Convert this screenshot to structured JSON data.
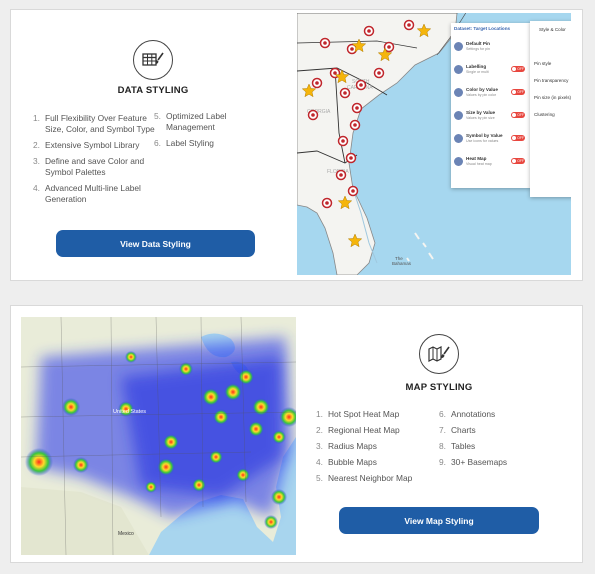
{
  "data_styling": {
    "title": "DATA STYLING",
    "icon": "table-paintbrush-icon",
    "features_left": [
      {
        "num": "1.",
        "text": "Full Flexibility Over Feature Size, Color, and Symbol Type"
      },
      {
        "num": "2.",
        "text": "Extensive Symbol Library"
      },
      {
        "num": "3.",
        "text": "Define and save Color and Symbol Palettes"
      },
      {
        "num": "4.",
        "text": "Advanced Multi-line Label Generation"
      }
    ],
    "features_right": [
      {
        "num": "5.",
        "text": "Optimized Label Management"
      },
      {
        "num": "6.",
        "text": "Label Styling"
      }
    ],
    "button": "View Data Styling",
    "map_panel": {
      "dataset": "Dataset: Target Locations",
      "tab": "Style & Color",
      "rows": [
        {
          "title": "Default Pin",
          "sub": "Settings for pin"
        },
        {
          "title": "Labelling",
          "sub": "Single or multi",
          "toggle": "OFF"
        },
        {
          "title": "Color by Value",
          "sub": "Values by pin color",
          "toggle": "OFF"
        },
        {
          "title": "Size by Value",
          "sub": "Values by pin size",
          "toggle": "OFF"
        },
        {
          "title": "Symbol by Value",
          "sub": "Use icons for values",
          "toggle": "OFF"
        },
        {
          "title": "Heat Map",
          "sub": "Visual heat map",
          "toggle": "OFF"
        }
      ],
      "style_options": [
        "Pin style",
        "Pin transparency",
        "Pin size (in pixels)",
        "Clustering"
      ]
    },
    "map_labels": [
      "South Carolina",
      "Georgia",
      "Savannah",
      "Florida",
      "The Bahamas",
      "Orlando",
      "Tampa"
    ]
  },
  "map_styling": {
    "title": "MAP STYLING",
    "icon": "map-paintbrush-icon",
    "features_left": [
      {
        "num": "1.",
        "text": "Hot Spot Heat Map"
      },
      {
        "num": "2.",
        "text": "Regional Heat Map"
      },
      {
        "num": "3.",
        "text": "Radius Maps"
      },
      {
        "num": "4.",
        "text": "Bubble Maps"
      },
      {
        "num": "5.",
        "text": "Nearest Neighbor Map"
      }
    ],
    "features_right": [
      {
        "num": "6.",
        "text": "Annotations"
      },
      {
        "num": "7.",
        "text": "Charts"
      },
      {
        "num": "8.",
        "text": "Tables"
      },
      {
        "num": "9.",
        "text": "30+ Basemaps"
      }
    ],
    "button": "View Map Styling",
    "map_labels": [
      "United States",
      "Mexico"
    ]
  },
  "colors": {
    "button": "#1f5da6",
    "toggle_off": "#e8473f",
    "star": "#f5b50b",
    "pin": "#c0262c"
  }
}
